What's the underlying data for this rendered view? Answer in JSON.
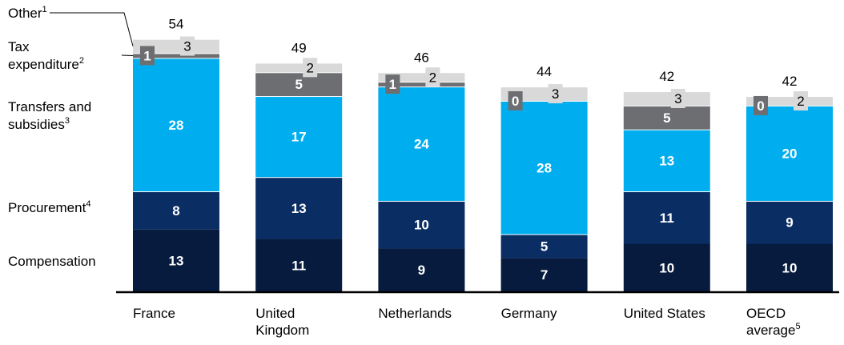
{
  "chart_data": {
    "type": "bar",
    "stacked": true,
    "categories": [
      {
        "lines": [
          "France"
        ],
        "sup": ""
      },
      {
        "lines": [
          "United",
          "Kingdom"
        ],
        "sup": ""
      },
      {
        "lines": [
          "Netherlands"
        ],
        "sup": ""
      },
      {
        "lines": [
          "Germany"
        ],
        "sup": ""
      },
      {
        "lines": [
          "United States"
        ],
        "sup": ""
      },
      {
        "lines": [
          "OECD",
          "average"
        ],
        "sup": "5"
      }
    ],
    "series": [
      {
        "name": "Compensation",
        "sup": "",
        "color": "#061b3e",
        "label_color": "#ffffff",
        "values": [
          13,
          11,
          9,
          7,
          10,
          10
        ]
      },
      {
        "name": "Procurement",
        "sup": "4",
        "color": "#0a2d64",
        "label_color": "#ffffff",
        "values": [
          8,
          13,
          10,
          5,
          11,
          9
        ]
      },
      {
        "name": "Transfers and subsidies",
        "sup": "3",
        "color": "#00aeef",
        "label_color": "#ffffff",
        "values": [
          28,
          17,
          24,
          28,
          13,
          20
        ]
      },
      {
        "name": "Tax expenditure",
        "sup": "2",
        "color": "#6d6e71",
        "label_color": "#ffffff",
        "values": [
          1,
          5,
          1,
          0,
          5,
          0
        ]
      },
      {
        "name": "Other",
        "sup": "1",
        "color": "#d9d9d9",
        "label_color": "#000000",
        "values": [
          3,
          2,
          2,
          3,
          3,
          2
        ]
      }
    ],
    "totals": [
      54,
      49,
      46,
      44,
      42,
      42
    ],
    "legend_lines": [
      {
        "series": "Other",
        "lines": [
          "Other"
        ],
        "sup": "1"
      },
      {
        "series": "Tax expenditure",
        "lines": [
          "Tax",
          "expenditure"
        ],
        "sup": "2"
      },
      {
        "series": "Transfers and subsidies",
        "lines": [
          "Transfers and",
          "subsidies"
        ],
        "sup": "3"
      },
      {
        "series": "Procurement",
        "lines": [
          "Procurement"
        ],
        "sup": "4"
      },
      {
        "series": "Compensation",
        "lines": [
          "Compensation"
        ],
        "sup": ""
      }
    ],
    "ylim": [
      0,
      56
    ],
    "grid": false,
    "legend_position": "left"
  }
}
